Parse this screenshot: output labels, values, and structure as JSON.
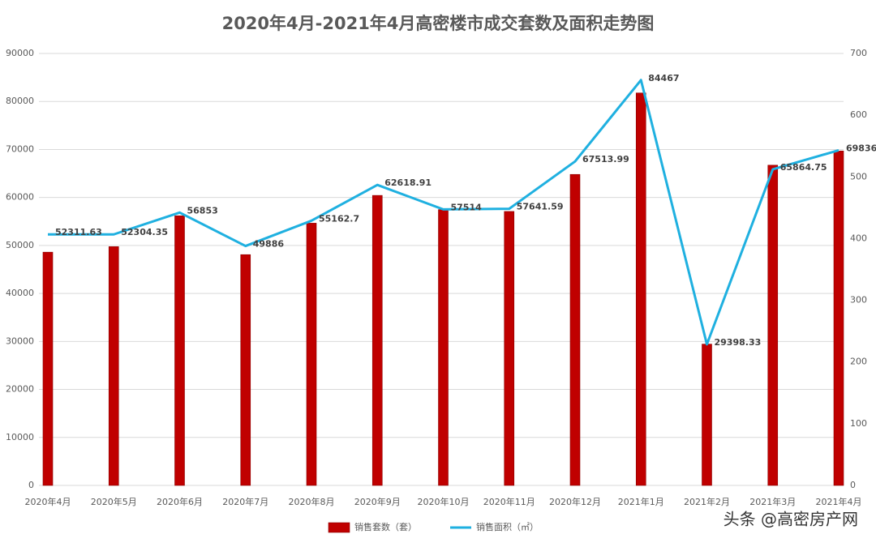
{
  "chart_data": {
    "type": "bar",
    "title": "2020年4月-2021年4月高密楼市成交套数及面积走势图",
    "categories": [
      "2020年4月",
      "2020年5月",
      "2020年6月",
      "2020年7月",
      "2020年8月",
      "2020年9月",
      "2020年10月",
      "2020年11月",
      "2020年12月",
      "2021年1月",
      "2021年2月",
      "2021年3月",
      "2021年4月"
    ],
    "series": [
      {
        "name": "销售套数（套）",
        "type": "bar",
        "axis": "y2",
        "color": "#c00000",
        "values": [
          378,
          387,
          437,
          374,
          425,
          470,
          447,
          444,
          504,
          636,
          229,
          519,
          542
        ]
      },
      {
        "name": "销售面积（㎡）",
        "type": "line",
        "color": "#1fb0e0",
        "values": [
          52311.63,
          52304.35,
          56853,
          49886,
          55162.7,
          62618.91,
          57514,
          57641.59,
          67513.99,
          84467,
          29398.33,
          65864.75,
          69836
        ],
        "value_labels": [
          "52311.63",
          "52304.35",
          "56853",
          "49886",
          "55162.7",
          "62618.91",
          "57514",
          "57641.59",
          "67513.99",
          "84467",
          "29398.33",
          "65864.75",
          "69836.00"
        ]
      }
    ],
    "ylim": [
      0,
      90000
    ],
    "yticks": [
      0,
      10000,
      20000,
      30000,
      40000,
      50000,
      60000,
      70000,
      80000,
      90000
    ],
    "y2lim": [
      0,
      700
    ],
    "y2ticks": [
      0,
      100,
      200,
      300,
      400,
      500,
      600,
      700
    ],
    "grid": true,
    "legend": "bottom",
    "credit": "头条 @高密房产网"
  }
}
